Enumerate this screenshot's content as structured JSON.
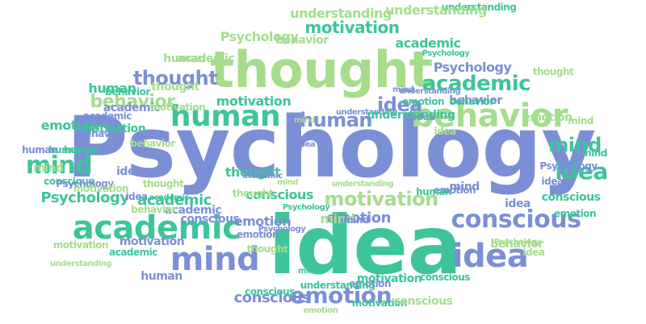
{
  "palette": {
    "blue": "#7b8fd6",
    "teal": "#3ec49b",
    "lime": "#a5dd8d",
    "mint": "#5fd3a8",
    "pale": "#c4e9a4"
  },
  "words": [
    {
      "text": "Psychology",
      "c": "blue"
    },
    {
      "text": "idea",
      "c": "teal"
    },
    {
      "text": "thought",
      "c": "lime"
    },
    {
      "text": "behavior",
      "c": "lime"
    },
    {
      "text": "human",
      "c": "teal"
    },
    {
      "text": "human",
      "c": "blue"
    },
    {
      "text": "academic",
      "c": "teal"
    },
    {
      "text": "mind",
      "c": "blue"
    },
    {
      "text": "idea",
      "c": "blue"
    },
    {
      "text": "conscious",
      "c": "blue"
    },
    {
      "text": "motivation",
      "c": "lime"
    },
    {
      "text": "emotion",
      "c": "blue"
    },
    {
      "text": "mind",
      "c": "teal"
    },
    {
      "text": "mind",
      "c": "teal"
    },
    {
      "text": "idea",
      "c": "teal"
    },
    {
      "text": "thought",
      "c": "blue"
    },
    {
      "text": "thought",
      "c": "teal"
    },
    {
      "text": "motivation",
      "c": "teal"
    },
    {
      "text": "understanding",
      "c": "lime"
    },
    {
      "text": "academic",
      "c": "teal"
    },
    {
      "text": "academic",
      "c": "teal"
    },
    {
      "text": "Psychology",
      "c": "blue"
    },
    {
      "text": "behavior",
      "c": "lime"
    },
    {
      "text": "Psychology",
      "c": "teal"
    },
    {
      "text": "conscious",
      "c": "teal"
    },
    {
      "text": "emotion",
      "c": "teal"
    },
    {
      "text": "behavior",
      "c": "blue"
    },
    {
      "text": "behavior",
      "c": "teal"
    },
    {
      "text": "motivation",
      "c": "teal"
    },
    {
      "text": "academic",
      "c": "lime"
    },
    {
      "text": "human",
      "c": "lime"
    },
    {
      "text": "human",
      "c": "teal"
    },
    {
      "text": "human",
      "c": "teal"
    },
    {
      "text": "idea",
      "c": "blue"
    },
    {
      "text": "conscious",
      "c": "teal"
    },
    {
      "text": "conscious",
      "c": "teal"
    },
    {
      "text": "conscious",
      "c": "blue"
    },
    {
      "text": "emotion",
      "c": "teal"
    },
    {
      "text": "emotion",
      "c": "lime"
    },
    {
      "text": "emotion",
      "c": "blue"
    },
    {
      "text": "mind",
      "c": "lime"
    },
    {
      "text": "mind",
      "c": "lime"
    },
    {
      "text": "mind",
      "c": "lime"
    },
    {
      "text": "understanding",
      "c": "teal"
    },
    {
      "text": "understanding",
      "c": "lime"
    },
    {
      "text": "thought",
      "c": "lime"
    },
    {
      "text": "behavior",
      "c": "lime"
    },
    {
      "text": "behavior",
      "c": "lime"
    },
    {
      "text": "idea",
      "c": "lime"
    },
    {
      "text": "idea",
      "c": "blue"
    },
    {
      "text": "idea",
      "c": "blue"
    },
    {
      "text": "Psychology",
      "c": "lime"
    },
    {
      "text": "academic",
      "c": "teal"
    },
    {
      "text": "academic",
      "c": "blue"
    },
    {
      "text": "motivation",
      "c": "teal"
    },
    {
      "text": "motivation",
      "c": "teal"
    },
    {
      "text": "emotion",
      "c": "blue"
    },
    {
      "text": "emotion",
      "c": "blue"
    },
    {
      "text": "human",
      "c": "teal"
    },
    {
      "text": "human",
      "c": "blue"
    },
    {
      "text": "human",
      "c": "teal"
    },
    {
      "text": "human",
      "c": "blue"
    },
    {
      "text": "conscious",
      "c": "blue"
    },
    {
      "text": "conscious",
      "c": "teal"
    },
    {
      "text": "conscious",
      "c": "lime"
    },
    {
      "text": "conscious",
      "c": "teal"
    },
    {
      "text": "emotion",
      "c": "teal"
    },
    {
      "text": "emotion",
      "c": "lime"
    },
    {
      "text": "emotion",
      "c": "blue"
    },
    {
      "text": "emotion",
      "c": "blue"
    },
    {
      "text": "thought",
      "c": "lime"
    },
    {
      "text": "thought",
      "c": "lime"
    },
    {
      "text": "thought",
      "c": "lime"
    },
    {
      "text": "thought",
      "c": "lime"
    },
    {
      "text": "behavior",
      "c": "lime"
    },
    {
      "text": "behavior",
      "c": "lime"
    },
    {
      "text": "behavior",
      "c": "teal"
    },
    {
      "text": "behavior",
      "c": "blue"
    },
    {
      "text": "idea",
      "c": "blue"
    },
    {
      "text": "idea",
      "c": "blue"
    },
    {
      "text": "idea",
      "c": "lime"
    },
    {
      "text": "idea",
      "c": "blue"
    },
    {
      "text": "idea",
      "c": "blue"
    },
    {
      "text": "understanding",
      "c": "teal"
    },
    {
      "text": "understanding",
      "c": "blue"
    },
    {
      "text": "understanding",
      "c": "teal"
    },
    {
      "text": "understanding",
      "c": "lime"
    },
    {
      "text": "understanding",
      "c": "blue"
    },
    {
      "text": "understanding",
      "c": "lime"
    },
    {
      "text": "Psychology",
      "c": "lime"
    },
    {
      "text": "Psychology",
      "c": "teal"
    },
    {
      "text": "Psychology",
      "c": "blue"
    },
    {
      "text": "Psychology",
      "c": "blue"
    },
    {
      "text": "Psychology",
      "c": "blue"
    },
    {
      "text": "Psychology",
      "c": "teal"
    },
    {
      "text": "academic",
      "c": "blue"
    },
    {
      "text": "academic",
      "c": "teal"
    },
    {
      "text": "academic",
      "c": "blue"
    },
    {
      "text": "academic",
      "c": "blue"
    },
    {
      "text": "academic",
      "c": "teal"
    },
    {
      "text": "motivation",
      "c": "lime"
    },
    {
      "text": "motivation",
      "c": "blue"
    },
    {
      "text": "motivation",
      "c": "lime"
    },
    {
      "text": "motivation",
      "c": "teal"
    },
    {
      "text": "motivation",
      "c": "lime"
    },
    {
      "text": "mind",
      "c": "lime"
    },
    {
      "text": "mind",
      "c": "teal"
    },
    {
      "text": "mind",
      "c": "blue"
    },
    {
      "text": "mind",
      "c": "blue"
    },
    {
      "text": "mind",
      "c": "blue"
    },
    {
      "text": "mind",
      "c": "lime"
    },
    {
      "text": "mind",
      "c": "teal"
    }
  ]
}
